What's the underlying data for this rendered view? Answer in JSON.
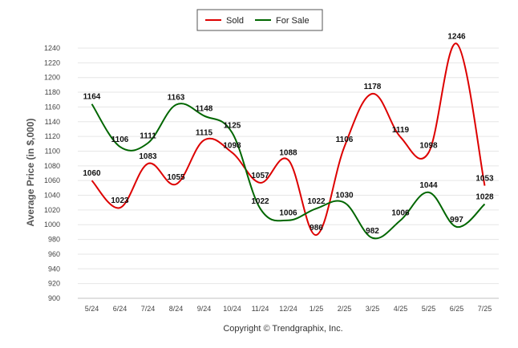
{
  "chart_data": {
    "type": "line",
    "categories": [
      "5/24",
      "6/24",
      "7/24",
      "8/24",
      "9/24",
      "10/24",
      "11/24",
      "12/24",
      "1/25",
      "2/25",
      "3/25",
      "4/25",
      "5/25",
      "6/25",
      "7/25"
    ],
    "series": [
      {
        "name": "Sold",
        "color": "#dd0000",
        "values": [
          1060,
          1023,
          1083,
          1055,
          1115,
          1098,
          1057,
          1088,
          986,
          1106,
          1178,
          1119,
          1098,
          1246,
          1053
        ]
      },
      {
        "name": "For Sale",
        "color": "#006600",
        "values": [
          1164,
          1106,
          1111,
          1163,
          1148,
          1125,
          1022,
          1006,
          1022,
          1030,
          982,
          1006,
          1044,
          997,
          1028
        ]
      }
    ],
    "ylabel": "Average Price (in $,000)",
    "xlabel": "",
    "ylim": [
      900,
      1240
    ],
    "yticks": [
      900,
      920,
      940,
      960,
      980,
      1000,
      1020,
      1040,
      1060,
      1080,
      1100,
      1120,
      1140,
      1160,
      1180,
      1200,
      1220,
      1240
    ],
    "grid": true,
    "legend_position": "top-center"
  },
  "legend": {
    "sold_label": "Sold",
    "forsale_label": "For Sale"
  },
  "footer": {
    "copyright": "Copyright © Trendgraphix, Inc."
  }
}
